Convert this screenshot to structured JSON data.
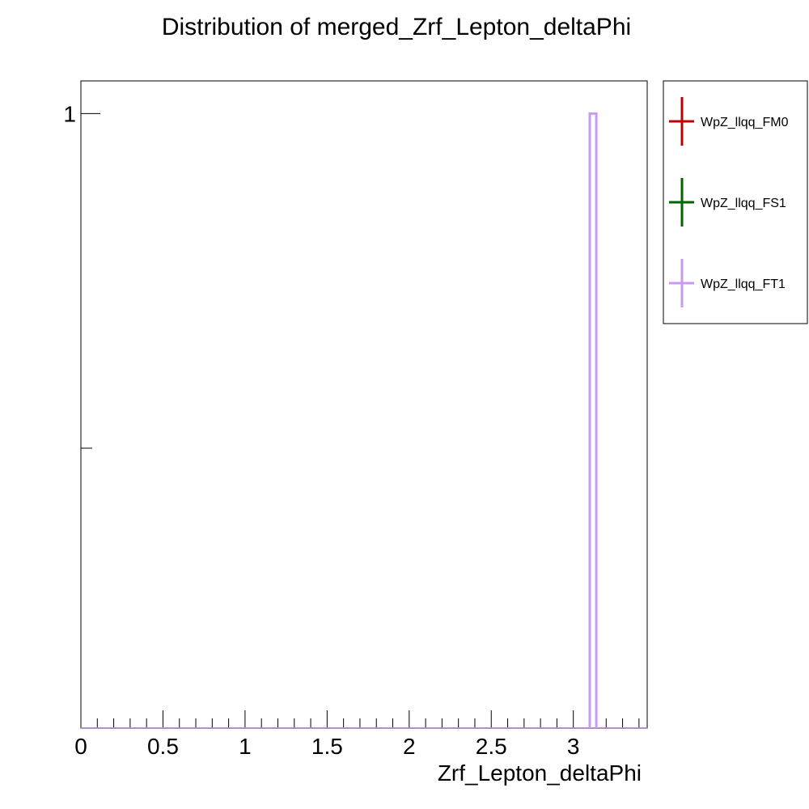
{
  "chart_data": {
    "type": "histogram",
    "title": "Distribution of merged_Zrf_Lepton_deltaPhi",
    "xlabel": "Zrf_Lepton_deltaPhi",
    "ylabel": "",
    "xlim": [
      0,
      3.45
    ],
    "ylim": [
      0,
      1.07
    ],
    "yscale": "log",
    "ylog_min": 0.28,
    "x_ticks": [
      0,
      0.5,
      1,
      1.5,
      2,
      2.5,
      3
    ],
    "x_tick_labels": [
      "0",
      "0.5",
      "1",
      "1.5",
      "2",
      "2.5",
      "3"
    ],
    "y_ticks": [
      1
    ],
    "y_tick_labels": [
      "1"
    ],
    "y_minor_ticks": [
      0.5
    ],
    "series": [
      {
        "name": "WpZ_llqq_FM0",
        "color": "#c00000",
        "bins": []
      },
      {
        "name": "WpZ_llqq_FS1",
        "color": "#006400",
        "bins": []
      },
      {
        "name": "WpZ_llqq_FT1",
        "color": "#c89bf0",
        "bins": [
          {
            "x0": 3.1,
            "x1": 3.14,
            "value": 1
          }
        ]
      }
    ],
    "legend_position": "right-outside-top",
    "grid": false
  }
}
